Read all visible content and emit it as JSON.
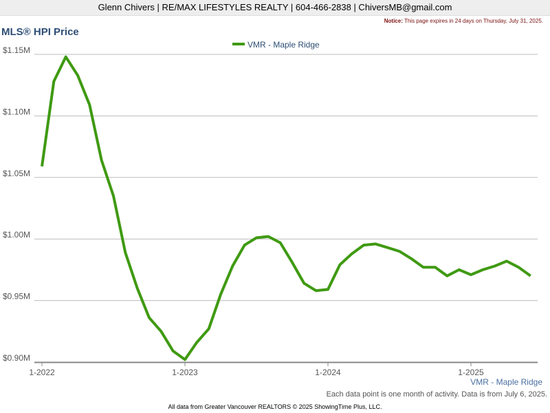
{
  "header": {
    "contact": "Glenn Chivers | RE/MAX LIFESTYLES REALTY | 604-466-2838 | ChiversMB@gmail.com",
    "notice_label": "Notice:",
    "notice_text": "This page expires in 24 days on Thursday, July 31, 2025."
  },
  "chart_data": {
    "type": "line",
    "title": "MLS® HPI Price",
    "categories": [
      "1-2022",
      null,
      null,
      null,
      null,
      null,
      null,
      null,
      null,
      null,
      null,
      null,
      "1-2023",
      null,
      null,
      null,
      null,
      null,
      null,
      null,
      null,
      null,
      null,
      null,
      "1-2024",
      null,
      null,
      null,
      null,
      null,
      null,
      null,
      null,
      null,
      null,
      null,
      "1-2025",
      null,
      null,
      null,
      null,
      null
    ],
    "series": [
      {
        "name": "VMR - Maple Ridge",
        "color": "#3f9a12",
        "values": [
          1059000,
          1128000,
          1148000,
          1133000,
          1109000,
          1064000,
          1035000,
          989000,
          960000,
          936000,
          925000,
          909000,
          902000,
          916000,
          927000,
          955000,
          978000,
          995000,
          1001000,
          1002000,
          997000,
          981000,
          964000,
          958000,
          959000,
          979000,
          988000,
          995000,
          996000,
          993000,
          990000,
          984000,
          977000,
          977000,
          970000,
          975000,
          971000,
          975000,
          978000,
          982000,
          977000,
          970000
        ]
      }
    ],
    "ylim": [
      900000,
      1150000
    ],
    "yticks": [
      {
        "value": 900000,
        "label": "$0.90M"
      },
      {
        "value": 950000,
        "label": "$0.95M"
      },
      {
        "value": 1000000,
        "label": "$1.00M"
      },
      {
        "value": 1050000,
        "label": "$1.05M"
      },
      {
        "value": 1100000,
        "label": "$1.10M"
      },
      {
        "value": 1150000,
        "label": "$1.15M"
      }
    ],
    "grid": true,
    "legend": "top",
    "note": "Each data point is one month of activity. Data is from July 6, 2025.",
    "source": "All data from Greater Vancouver REALTORS © 2025 ShowingTime Plus, LLC."
  }
}
